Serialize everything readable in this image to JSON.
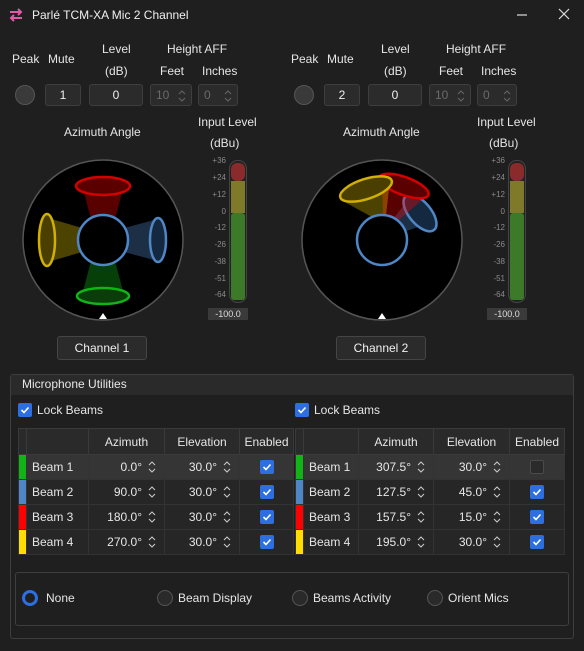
{
  "window": {
    "title": "Parlé TCM-XA Mic 2 Channel",
    "minimize_label": "—",
    "close_label": "✕"
  },
  "header": {
    "peak": "Peak",
    "mute": "Mute",
    "level": "Level",
    "level_unit": "(dB)",
    "height_aff": "Height AFF",
    "feet": "Feet",
    "inches": "Inches"
  },
  "channels": [
    {
      "mute_value": "1",
      "level_value": "0",
      "feet_value": "10",
      "inches_value": "0",
      "azimuth_label": "Azimuth Angle",
      "input_level_label": "Input Level",
      "input_level_unit": "(dBu)",
      "meter_readout": "-100.0",
      "button_label": "Channel 1"
    },
    {
      "mute_value": "2",
      "level_value": "0",
      "feet_value": "10",
      "inches_value": "0",
      "azimuth_label": "Azimuth Angle",
      "input_level_label": "Input Level",
      "input_level_unit": "(dBu)",
      "meter_readout": "-100.0",
      "button_label": "Channel 2"
    }
  ],
  "meter_scale": [
    "+36",
    "+24",
    "+12",
    "0",
    "-12",
    "-26",
    "-38",
    "-51",
    "-64"
  ],
  "utilities": {
    "title": "Microphone Utilities",
    "lock_beams_label": "Lock Beams",
    "columns": [
      "Azimuth",
      "Elevation",
      "Enabled"
    ],
    "tables": [
      {
        "rows": [
          {
            "name": "Beam 1",
            "azimuth": "0.0°",
            "elevation": "30.0°",
            "enabled": true,
            "color": "#11b416"
          },
          {
            "name": "Beam 2",
            "azimuth": "90.0°",
            "elevation": "30.0°",
            "enabled": true,
            "color": "#4f86c6"
          },
          {
            "name": "Beam 3",
            "azimuth": "180.0°",
            "elevation": "30.0°",
            "enabled": true,
            "color": "#ff0000"
          },
          {
            "name": "Beam 4",
            "azimuth": "270.0°",
            "elevation": "30.0°",
            "enabled": true,
            "color": "#ffdd00"
          }
        ]
      },
      {
        "rows": [
          {
            "name": "Beam 1",
            "azimuth": "307.5°",
            "elevation": "30.0°",
            "enabled": false,
            "color": "#11b416"
          },
          {
            "name": "Beam 2",
            "azimuth": "127.5°",
            "elevation": "45.0°",
            "enabled": true,
            "color": "#4f86c6"
          },
          {
            "name": "Beam 3",
            "azimuth": "157.5°",
            "elevation": "15.0°",
            "enabled": true,
            "color": "#ff0000"
          },
          {
            "name": "Beam 4",
            "azimuth": "195.0°",
            "elevation": "30.0°",
            "enabled": true,
            "color": "#ffdd00"
          }
        ]
      }
    ],
    "display_options": [
      "None",
      "Beam Display",
      "Beams Activity",
      "Orient Mics"
    ],
    "selected_option": "None"
  },
  "colors": {
    "accent": "#2d6fe0",
    "background": "#1f1f1f",
    "app_icon": "#e05aa8"
  }
}
